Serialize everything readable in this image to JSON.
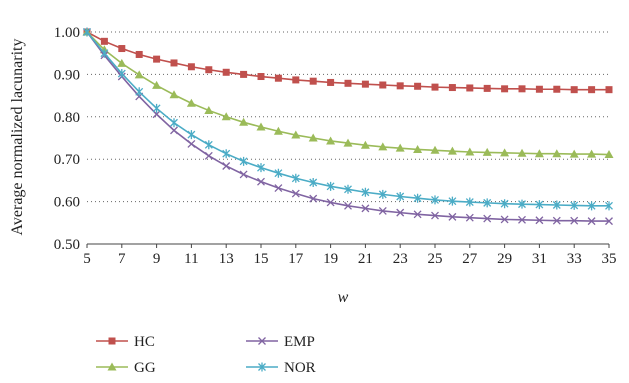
{
  "chart_data": {
    "type": "line",
    "title": "",
    "xlabel": "w",
    "ylabel": "Average normalized lacunarity",
    "xlim": [
      5,
      35
    ],
    "ylim": [
      0.5,
      1.0
    ],
    "x_ticks": [
      5,
      7,
      9,
      11,
      13,
      15,
      17,
      19,
      21,
      23,
      25,
      27,
      29,
      31,
      33,
      35
    ],
    "y_ticks": [
      0.5,
      0.6,
      0.7,
      0.8,
      0.9,
      1.0
    ],
    "y_tick_labels": [
      "0.50",
      "0.60",
      "0.70",
      "0.80",
      "0.90",
      "1.00"
    ],
    "grid": "horizontal-dotted",
    "legend_position": "bottom",
    "x": [
      5,
      6,
      7,
      8,
      9,
      10,
      11,
      12,
      13,
      14,
      15,
      16,
      17,
      18,
      19,
      20,
      21,
      22,
      23,
      24,
      25,
      26,
      27,
      28,
      29,
      30,
      31,
      32,
      33,
      34,
      35
    ],
    "series": [
      {
        "name": "HC",
        "color": "#c0504d",
        "marker": "square",
        "values": [
          1.0,
          0.978,
          0.961,
          0.947,
          0.936,
          0.927,
          0.918,
          0.911,
          0.905,
          0.9,
          0.895,
          0.891,
          0.887,
          0.884,
          0.881,
          0.879,
          0.877,
          0.875,
          0.873,
          0.872,
          0.87,
          0.869,
          0.868,
          0.867,
          0.866,
          0.866,
          0.865,
          0.865,
          0.864,
          0.864,
          0.864
        ]
      },
      {
        "name": "GG",
        "color": "#9bbb59",
        "marker": "triangle",
        "values": [
          1.0,
          0.958,
          0.926,
          0.899,
          0.874,
          0.852,
          0.832,
          0.815,
          0.8,
          0.787,
          0.776,
          0.766,
          0.757,
          0.75,
          0.743,
          0.738,
          0.733,
          0.729,
          0.726,
          0.723,
          0.721,
          0.719,
          0.717,
          0.716,
          0.715,
          0.714,
          0.713,
          0.713,
          0.712,
          0.712,
          0.711
        ]
      },
      {
        "name": "EMP",
        "color": "#8064a2",
        "marker": "x",
        "values": [
          1.0,
          0.945,
          0.895,
          0.848,
          0.806,
          0.768,
          0.736,
          0.708,
          0.684,
          0.664,
          0.647,
          0.632,
          0.619,
          0.607,
          0.598,
          0.59,
          0.584,
          0.578,
          0.574,
          0.57,
          0.567,
          0.564,
          0.562,
          0.56,
          0.558,
          0.557,
          0.556,
          0.555,
          0.555,
          0.554,
          0.554
        ]
      },
      {
        "name": "NOR",
        "color": "#4bacc6",
        "marker": "asterisk",
        "values": [
          1.0,
          0.95,
          0.902,
          0.859,
          0.82,
          0.786,
          0.758,
          0.734,
          0.713,
          0.695,
          0.68,
          0.667,
          0.655,
          0.645,
          0.636,
          0.629,
          0.622,
          0.617,
          0.612,
          0.608,
          0.604,
          0.601,
          0.599,
          0.597,
          0.595,
          0.594,
          0.593,
          0.592,
          0.591,
          0.59,
          0.59
        ]
      }
    ]
  }
}
